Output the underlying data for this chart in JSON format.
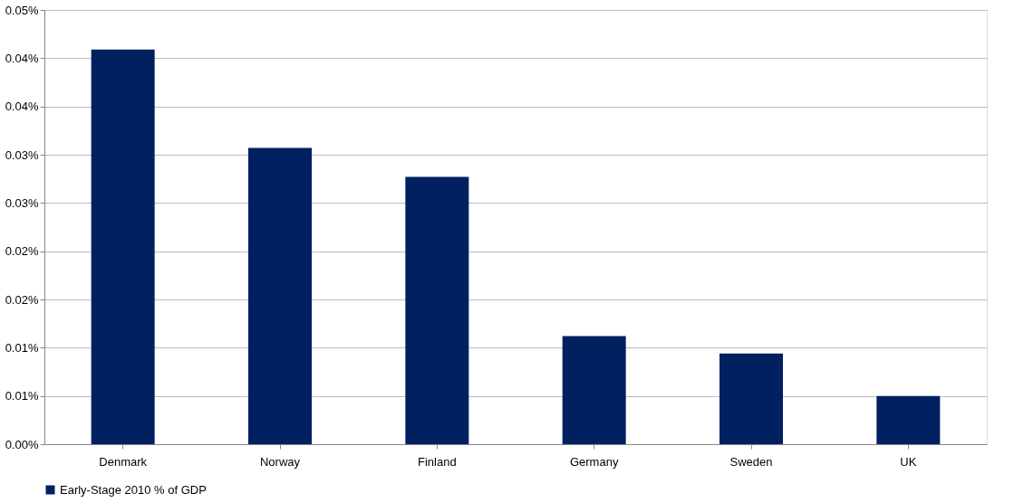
{
  "chart_data": {
    "type": "bar",
    "categories": [
      "Denmark",
      "Norway",
      "Finland",
      "Germany",
      "Sweden",
      "UK"
    ],
    "series": [
      {
        "name": "Early-Stage 2010 % of GDP",
        "color": "#002060",
        "values": [
          0.0409,
          0.0307,
          0.0277,
          0.0112,
          0.0094,
          0.005
        ]
      }
    ],
    "ylim": [
      0,
      0.045
    ],
    "yticks": [
      {
        "value": 0,
        "label": "0.00%"
      },
      {
        "value": 0.005,
        "label": "0.01%"
      },
      {
        "value": 0.01,
        "label": "0.01%"
      },
      {
        "value": 0.015,
        "label": "0.02%"
      },
      {
        "value": 0.02,
        "label": "0.02%"
      },
      {
        "value": 0.025,
        "label": "0.03%"
      },
      {
        "value": 0.03,
        "label": "0.03%"
      },
      {
        "value": 0.035,
        "label": "0.04%"
      },
      {
        "value": 0.04,
        "label": "0.04%"
      },
      {
        "value": 0.045,
        "label": "0.05%"
      }
    ],
    "grid": "y",
    "legend": "bottom"
  }
}
